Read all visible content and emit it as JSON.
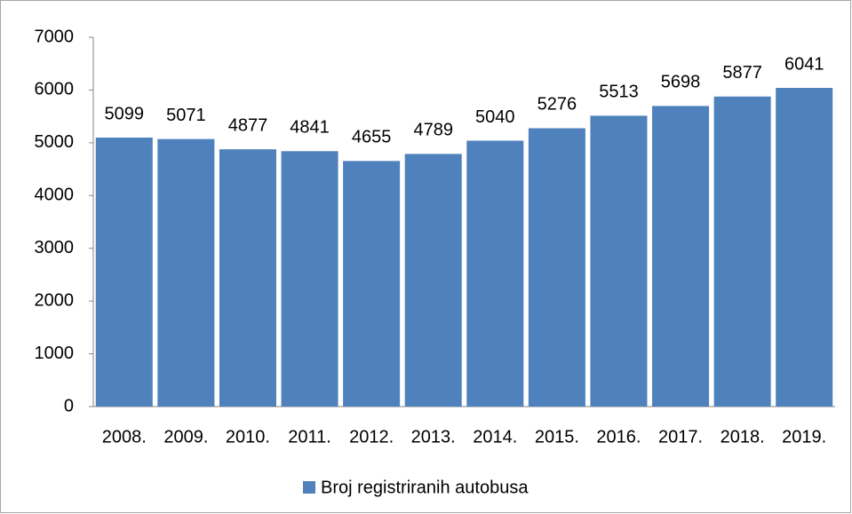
{
  "chart_data": {
    "type": "bar",
    "categories": [
      "2008.",
      "2009.",
      "2010.",
      "2011.",
      "2012.",
      "2013.",
      "2014.",
      "2015.",
      "2016.",
      "2017.",
      "2018.",
      "2019."
    ],
    "series": [
      {
        "name": "Broj registriranih autobusa",
        "color": "#4f81bd",
        "values": [
          5099,
          5071,
          4877,
          4841,
          4655,
          4789,
          5040,
          5276,
          5513,
          5698,
          5877,
          6041
        ]
      }
    ],
    "ylim": [
      0,
      7000
    ],
    "yticks": [
      0,
      1000,
      2000,
      3000,
      4000,
      5000,
      6000,
      7000
    ],
    "grid": false,
    "legend": "bottom",
    "data_labels": true
  }
}
